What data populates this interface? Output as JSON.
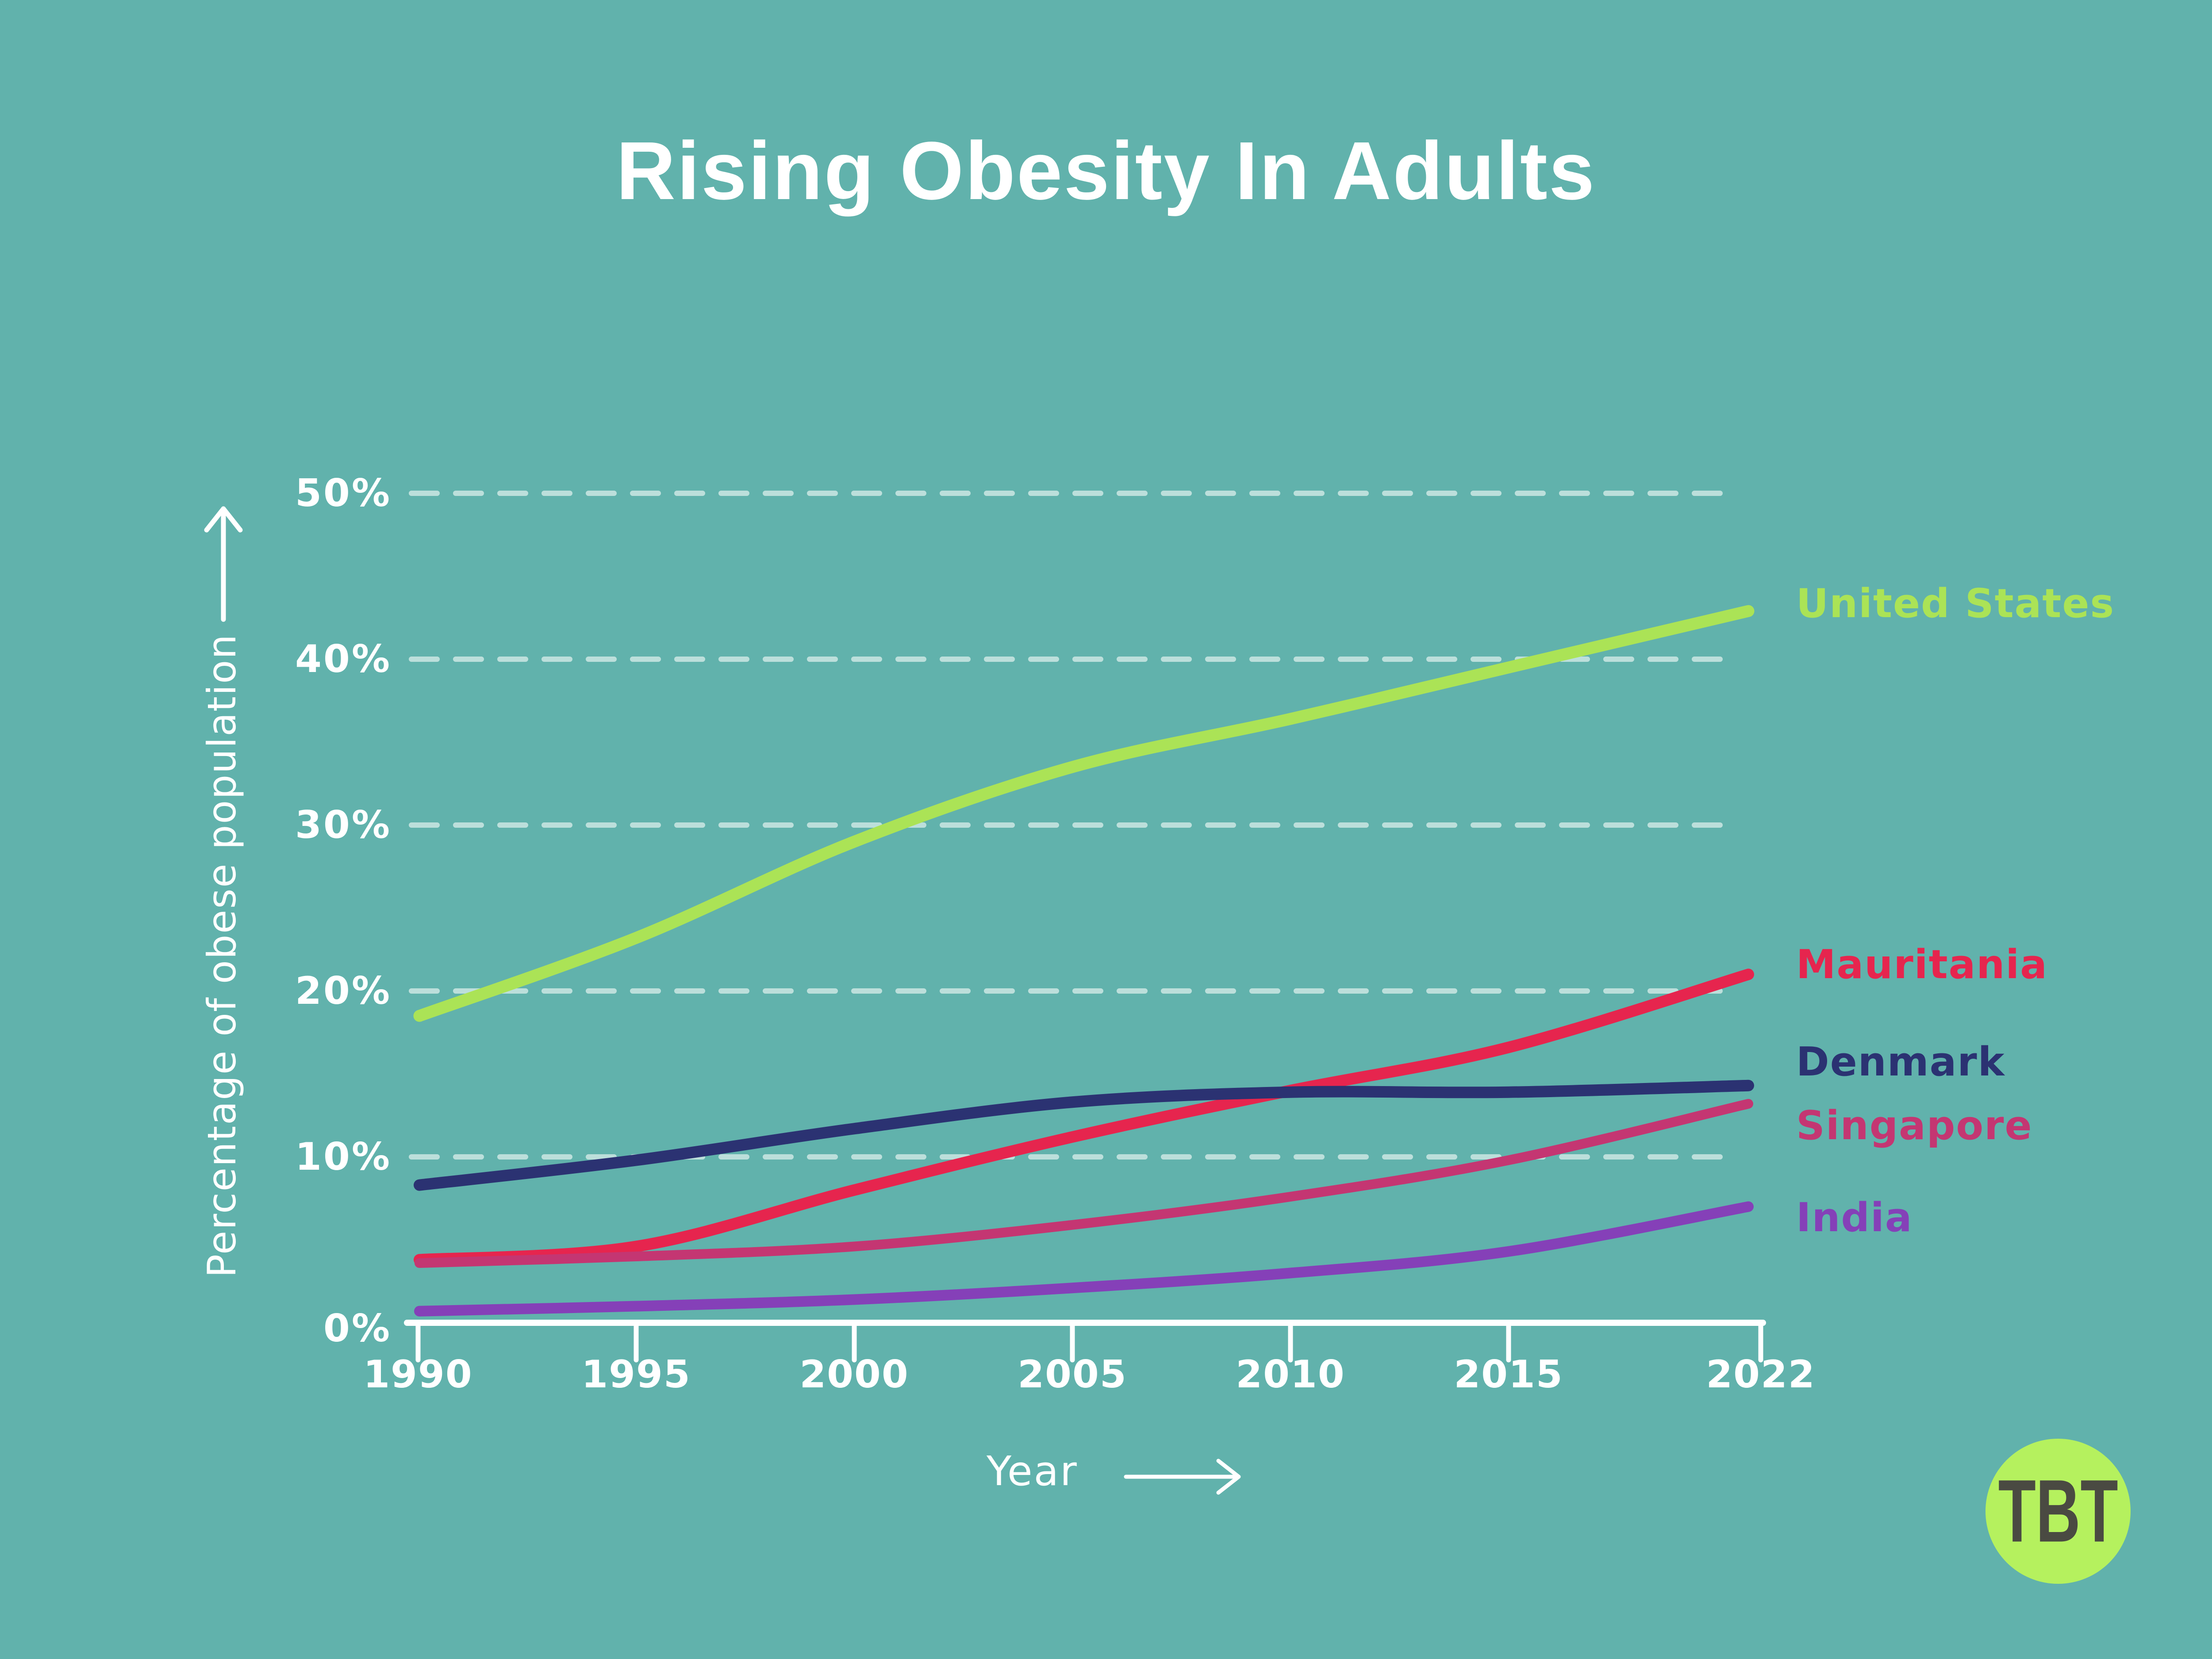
{
  "title": "Rising Obesity In Adults",
  "colors": {
    "background": "#61b2ac",
    "text": "#ffffff",
    "gridline": "#cde8e4",
    "axis": "#ffffff",
    "logo_circle": "#b5f15e",
    "logo_text": "#4a4a42"
  },
  "chart_data": {
    "type": "line",
    "title": "Rising Obesity In Adults",
    "xlabel": "Year",
    "ylabel": "Percentage of obese population",
    "categories": [
      "1990",
      "1995",
      "2000",
      "2005",
      "2010",
      "2015",
      "2022"
    ],
    "ytick_labels": [
      "0%",
      "10%",
      "20%",
      "30%",
      "40%",
      "50%"
    ],
    "ylim": [
      0,
      50
    ],
    "grid": "dashed horizontal gridlines at every 10%",
    "legend_position": "right of line ends",
    "series": [
      {
        "name": "United States",
        "color": "#abe356",
        "values": [
          18.5,
          23.2,
          29.0,
          33.5,
          36.4,
          39.5,
          42.9
        ]
      },
      {
        "name": "Mauritania",
        "color": "#e6254e",
        "values": [
          3.8,
          4.6,
          8.0,
          11.2,
          14.0,
          16.6,
          21.0
        ]
      },
      {
        "name": "Denmark",
        "color": "#2b3272",
        "values": [
          8.3,
          9.8,
          11.7,
          13.3,
          13.9,
          13.9,
          14.3
        ]
      },
      {
        "name": "Singapore",
        "color": "#c43672",
        "values": [
          3.6,
          4.0,
          4.6,
          5.9,
          7.6,
          9.8,
          13.2
        ]
      },
      {
        "name": "India",
        "color": "#8540b8",
        "values": [
          0.7,
          1.0,
          1.4,
          2.1,
          3.0,
          4.3,
          7.0
        ]
      }
    ]
  },
  "logo": {
    "text": "TBT"
  }
}
